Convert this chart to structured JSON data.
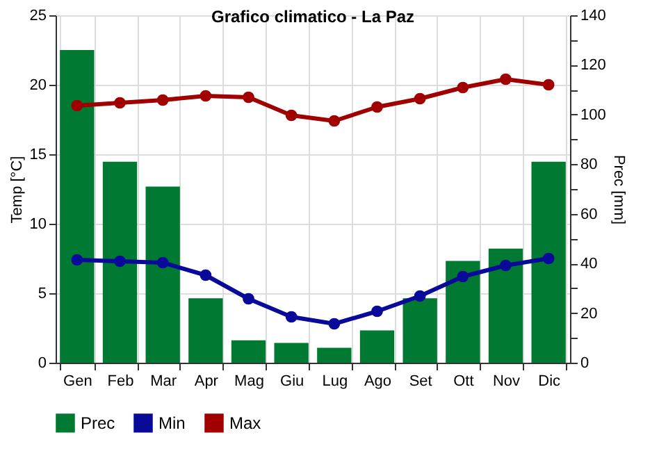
{
  "chart_data": {
    "type": "bar",
    "title": "Grafico climatico - La Paz",
    "ylabel": "Temp [°C]",
    "y2label": "Prec [mm]",
    "categories": [
      "Gen",
      "Feb",
      "Mar",
      "Apr",
      "Mag",
      "Giu",
      "Lug",
      "Ago",
      "Set",
      "Ott",
      "Nov",
      "Dic"
    ],
    "series": [
      {
        "name": "Prec",
        "axis": "y2",
        "color": "#007a33",
        "values": [
          126,
          81,
          71,
          26,
          9,
          8,
          6,
          13,
          26,
          41,
          46,
          81
        ]
      },
      {
        "name": "Min",
        "type": "line",
        "color": "#0a0a9a",
        "values": [
          7.4,
          7.3,
          7.2,
          6.3,
          4.6,
          3.3,
          2.8,
          3.7,
          4.8,
          6.2,
          7.0,
          7.5
        ]
      },
      {
        "name": "Max",
        "type": "line",
        "color": "#a00000",
        "values": [
          18.5,
          18.7,
          18.9,
          19.2,
          19.1,
          17.8,
          17.4,
          18.4,
          19.0,
          19.8,
          20.4,
          20.0
        ]
      }
    ],
    "ylim": [
      0,
      25
    ],
    "yticks": [
      0,
      5,
      10,
      15,
      20,
      25
    ],
    "y2lim": [
      0,
      140
    ],
    "y2ticks": [
      0,
      {
        "value": 10,
        "label": null
      },
      20,
      {
        "value": 30,
        "label": null
      },
      40,
      {
        "value": 50,
        "label": null
      },
      60,
      {
        "value": 70,
        "label": null
      },
      80,
      {
        "value": 90,
        "label": null
      },
      100,
      {
        "value": 110,
        "label": null
      },
      120,
      {
        "value": 130,
        "label": null
      },
      140
    ],
    "grid": true,
    "legend": "bottom left",
    "marker": "circle",
    "line_style": "solid"
  }
}
